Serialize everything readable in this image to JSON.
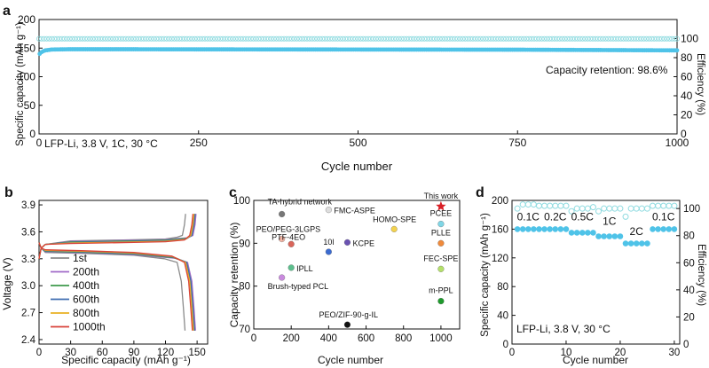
{
  "colors": {
    "capacity": "#4fc3e8",
    "efficiency": "#8fdbe0",
    "this_work": "#d81f26"
  },
  "chart_data": [
    {
      "panel": "a",
      "type": "scatter",
      "xlabel": "Cycle number",
      "ylabel": "Specific capacity (mAh g⁻¹)",
      "y2label": "Efficiency (%)",
      "xlim": [
        0,
        1000
      ],
      "ylim": [
        0,
        200
      ],
      "y2lim": [
        0,
        120
      ],
      "xticks": [
        "0",
        "250",
        "500",
        "750",
        "1000"
      ],
      "yticks": [
        "0",
        "50",
        "100",
        "150",
        "200"
      ],
      "y2ticks": [
        "0",
        "20",
        "40",
        "60",
        "80",
        "100"
      ],
      "annotations": [
        "Capacity retention: 98.6%",
        "LFP-Li, 3.8 V, 1C, 30 °C"
      ],
      "series": [
        {
          "role": "capacity",
          "x": [
            1,
            5,
            10,
            20,
            50,
            100,
            250,
            500,
            750,
            1000
          ],
          "y": [
            140,
            144,
            146,
            147.5,
            148,
            148,
            147.8,
            147.5,
            147.2,
            146
          ]
        },
        {
          "role": "efficiency",
          "x": [
            1,
            250,
            500,
            750,
            1000
          ],
          "y": [
            99.8,
            99.8,
            99.8,
            99.8,
            99.8
          ]
        }
      ]
    },
    {
      "panel": "b",
      "type": "line",
      "xlabel": "Specific capacity (mAh g⁻¹)",
      "ylabel": "Voltage (V)",
      "xlim": [
        0,
        160
      ],
      "ylim": [
        2.35,
        3.95
      ],
      "xticks": [
        "0",
        "30",
        "60",
        "90",
        "120",
        "150"
      ],
      "yticks": [
        "2.4",
        "2.7",
        "3.0",
        "3.3",
        "3.6",
        "3.9"
      ],
      "legend": [
        "1st",
        "200th",
        "400th",
        "600th",
        "800th",
        "1000th"
      ],
      "series": [
        {
          "name": "1st",
          "color": "#8a8a8a",
          "capacity": 139
        },
        {
          "name": "200th",
          "color": "#a06ac8",
          "capacity": 149
        },
        {
          "name": "400th",
          "color": "#3e9a4c",
          "capacity": 148
        },
        {
          "name": "600th",
          "color": "#3f6db0",
          "capacity": 148
        },
        {
          "name": "800th",
          "color": "#e8b022",
          "capacity": 147
        },
        {
          "name": "1000th",
          "color": "#d9433a",
          "capacity": 146
        }
      ]
    },
    {
      "panel": "c",
      "type": "scatter",
      "xlabel": "Cycle number",
      "ylabel": "Capacity retention (%)",
      "xlim": [
        0,
        1100
      ],
      "ylim": [
        70,
        100
      ],
      "xticks": [
        "0",
        "200",
        "400",
        "600",
        "800",
        "1000"
      ],
      "yticks": [
        "70",
        "80",
        "90",
        "100"
      ],
      "points": [
        {
          "label": "This work",
          "x": 1000,
          "y": 98.6,
          "color": "#d81f26",
          "star": true
        },
        {
          "label": "TA-hybrid network",
          "x": 150,
          "y": 96.8,
          "color": "#777777"
        },
        {
          "label": "FMC-ASPE",
          "x": 400,
          "y": 97.8,
          "color": "#dddddd"
        },
        {
          "label": "HOMO-SPE",
          "x": 750,
          "y": 93.3,
          "color": "#f3d24e"
        },
        {
          "label": "PCEE",
          "x": 1000,
          "y": 94.5,
          "color": "#7fd6e6"
        },
        {
          "label": "PEO/PEG-3LGPS",
          "x": 150,
          "y": 91.0,
          "color": "#f3b6a6"
        },
        {
          "label": "PTF-4EO",
          "x": 200,
          "y": 89.8,
          "color": "#d9655a"
        },
        {
          "label": "10l",
          "x": 400,
          "y": 88.0,
          "color": "#3b6bd0"
        },
        {
          "label": "KCPE",
          "x": 500,
          "y": 90.2,
          "color": "#6a52b2"
        },
        {
          "label": "PLLE",
          "x": 1000,
          "y": 90.0,
          "color": "#f08a3a"
        },
        {
          "label": "IPLL",
          "x": 200,
          "y": 84.3,
          "color": "#5cbf8d"
        },
        {
          "label": "FEC-SPE",
          "x": 1000,
          "y": 84.0,
          "color": "#b4e06a"
        },
        {
          "label": "Brush-typed PCL",
          "x": 150,
          "y": 82.0,
          "color": "#c98ade"
        },
        {
          "label": "m-PPL",
          "x": 1000,
          "y": 76.5,
          "color": "#1e9a2c"
        },
        {
          "label": "PEO/ZIF-90-g-IL",
          "x": 500,
          "y": 71.0,
          "color": "#111111"
        }
      ]
    },
    {
      "panel": "d",
      "type": "scatter",
      "xlabel": "Cycle number",
      "ylabel": "Specific capacity (mAh g⁻¹)",
      "y2label": "Efficiency (%)",
      "xlim": [
        0,
        31
      ],
      "ylim": [
        0,
        200
      ],
      "y2lim": [
        0,
        106
      ],
      "xticks": [
        "0",
        "10",
        "20",
        "30"
      ],
      "yticks": [
        "0",
        "40",
        "80",
        "120",
        "160",
        "200"
      ],
      "y2ticks": [
        "0",
        "20",
        "40",
        "60",
        "80",
        "100"
      ],
      "rate_labels": [
        {
          "text": "0.1C",
          "x": 3,
          "y": 172
        },
        {
          "text": "0.2C",
          "x": 8,
          "y": 172
        },
        {
          "text": "0.5C",
          "x": 13,
          "y": 172
        },
        {
          "text": "1C",
          "x": 18,
          "y": 166
        },
        {
          "text": "2C",
          "x": 23,
          "y": 152
        },
        {
          "text": "0.1C",
          "x": 28,
          "y": 172
        }
      ],
      "annotation": "LFP-Li, 3.8 V, 30 °C",
      "capacity": [
        160,
        160,
        160,
        160,
        160,
        160,
        160,
        160,
        160,
        160,
        155,
        155,
        155,
        155,
        155,
        150,
        150,
        150,
        150,
        150,
        140,
        140,
        140,
        140,
        140,
        160,
        160,
        160,
        160,
        160
      ],
      "efficiency": [
        100,
        103,
        103,
        103,
        102,
        102,
        102,
        102,
        102,
        102,
        98,
        100,
        100,
        100,
        101,
        98,
        100,
        100,
        100,
        100,
        94,
        100,
        100,
        100,
        100,
        102,
        102,
        102,
        102,
        102
      ]
    }
  ],
  "panel_labels": [
    "a",
    "b",
    "c",
    "d"
  ]
}
